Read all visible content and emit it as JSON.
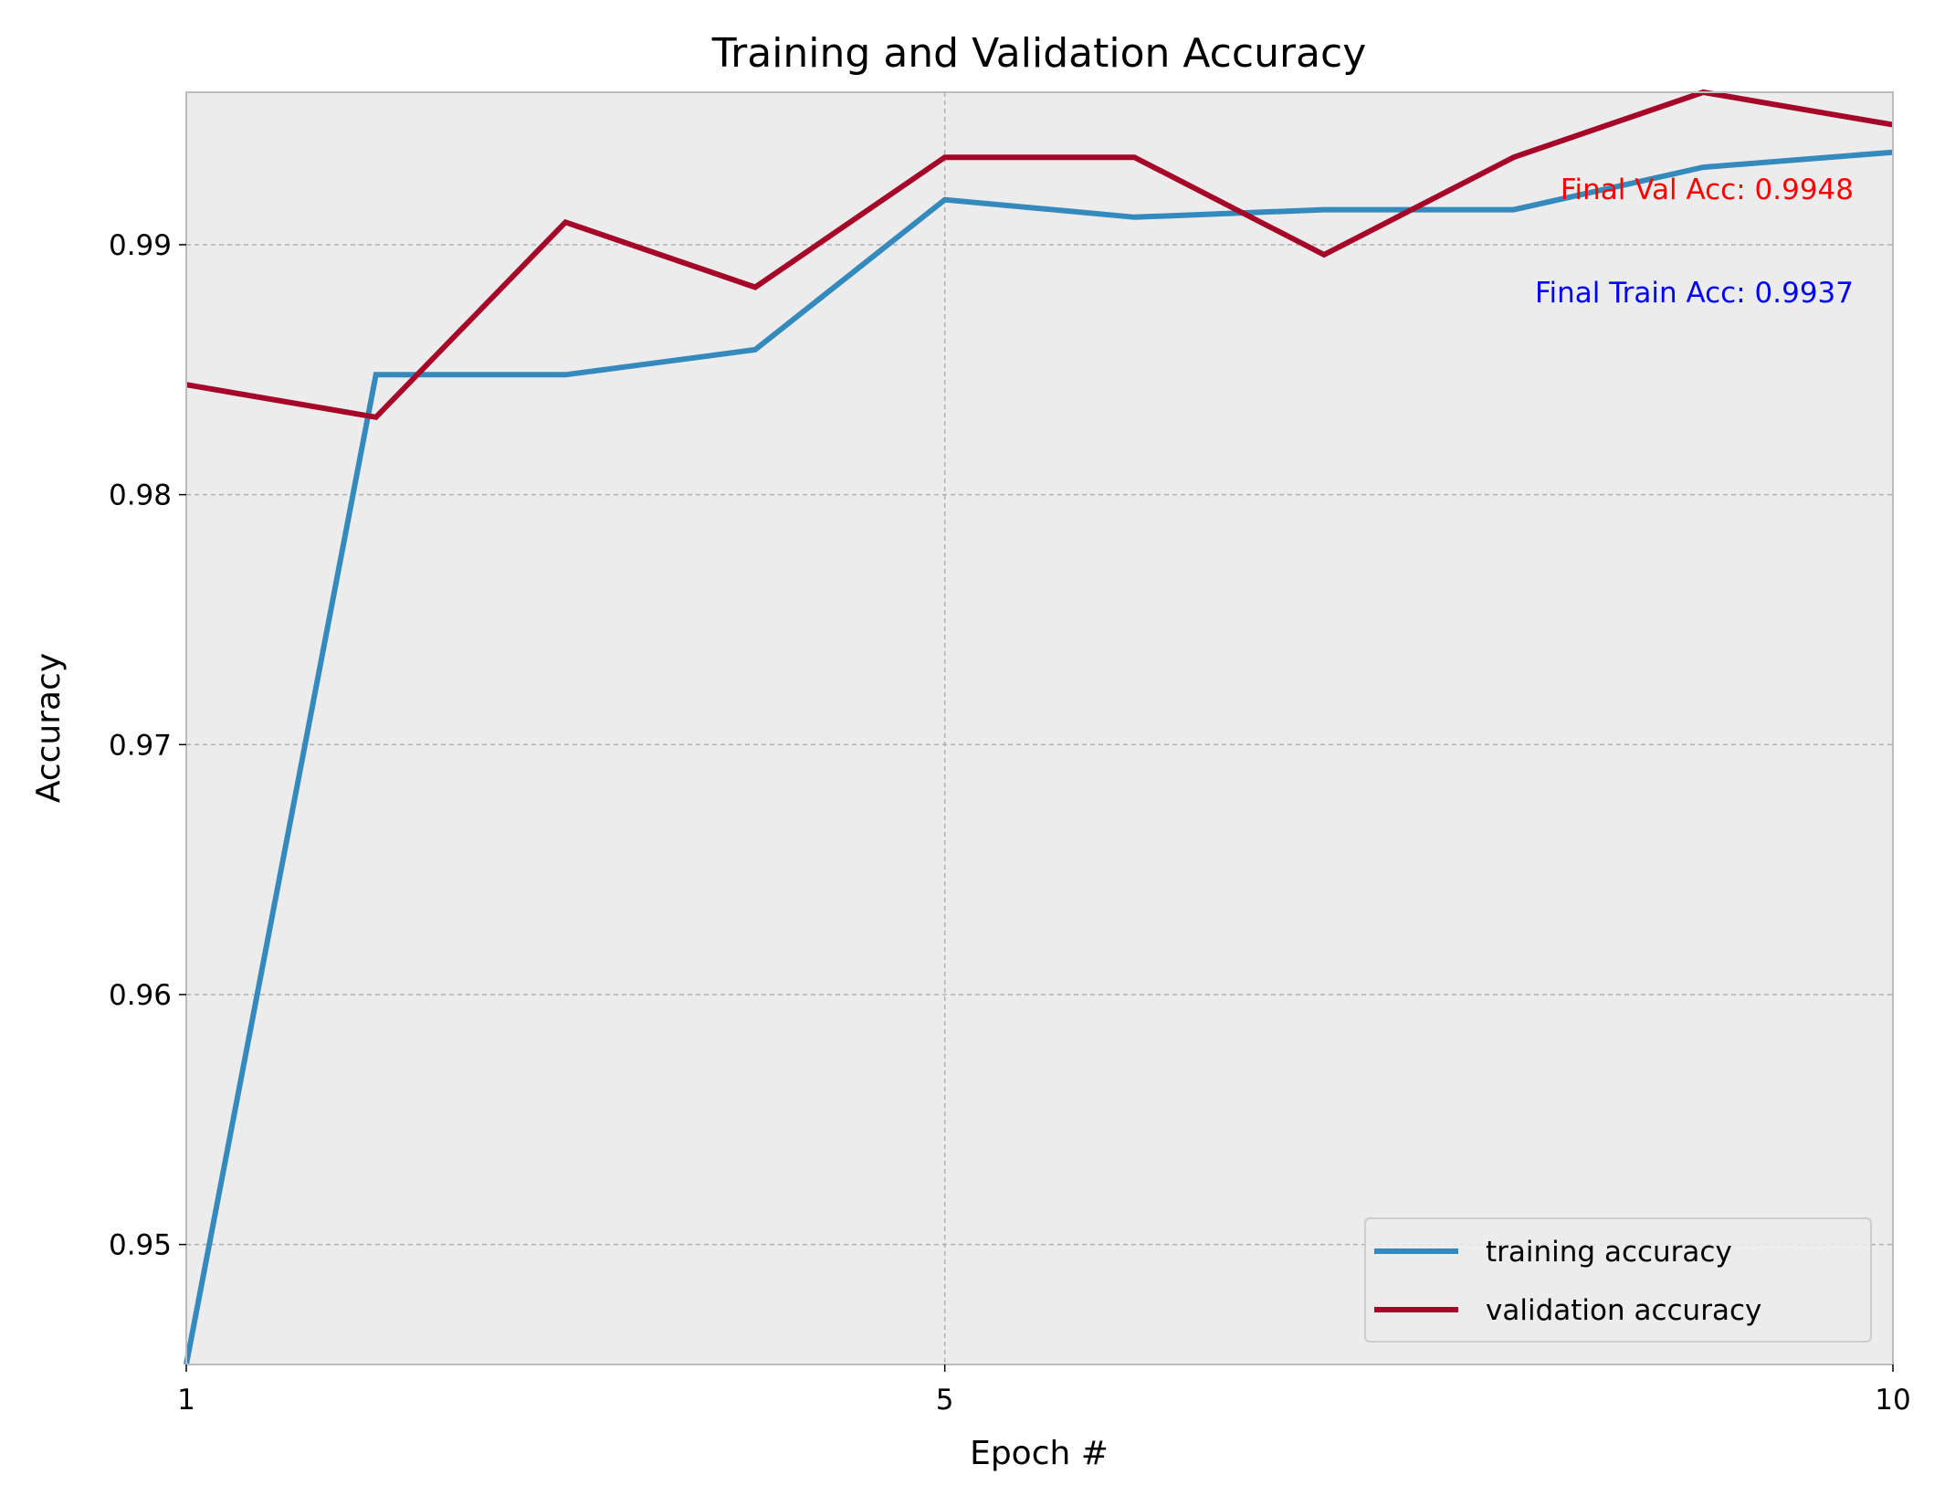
{
  "chart_data": {
    "type": "line",
    "title": "Training and Validation Accuracy",
    "xlabel": "Epoch #",
    "ylabel": "Accuracy",
    "x": [
      1,
      2,
      3,
      4,
      5,
      6,
      7,
      8,
      9,
      10
    ],
    "xlim": [
      1,
      10
    ],
    "ylim": [
      0.9452,
      0.9961
    ],
    "xticks": [
      1,
      5,
      10
    ],
    "xtick_labels": [
      "1",
      "5",
      "10"
    ],
    "yticks": [
      0.95,
      0.96,
      0.97,
      0.98,
      0.99
    ],
    "ytick_labels": [
      "0.95",
      "0.96",
      "0.97",
      "0.98",
      "0.99"
    ],
    "grid": true,
    "legend_position": "lower-right",
    "series": [
      {
        "name": "training accuracy",
        "color": "#348ABD",
        "values": [
          0.9452,
          0.9848,
          0.9848,
          0.9858,
          0.9918,
          0.9911,
          0.9914,
          0.9914,
          0.9931,
          0.9937
        ]
      },
      {
        "name": "validation accuracy",
        "color": "#A60628",
        "values": [
          0.9844,
          0.9831,
          0.9909,
          0.9883,
          0.9935,
          0.9935,
          0.9896,
          0.9935,
          0.9961,
          0.9948
        ]
      }
    ],
    "annotations": [
      {
        "text": "Final Val Acc: 0.9948",
        "color": "#FF0000"
      },
      {
        "text": "Final Train Acc: 0.9937",
        "color": "#0000FF"
      }
    ]
  }
}
